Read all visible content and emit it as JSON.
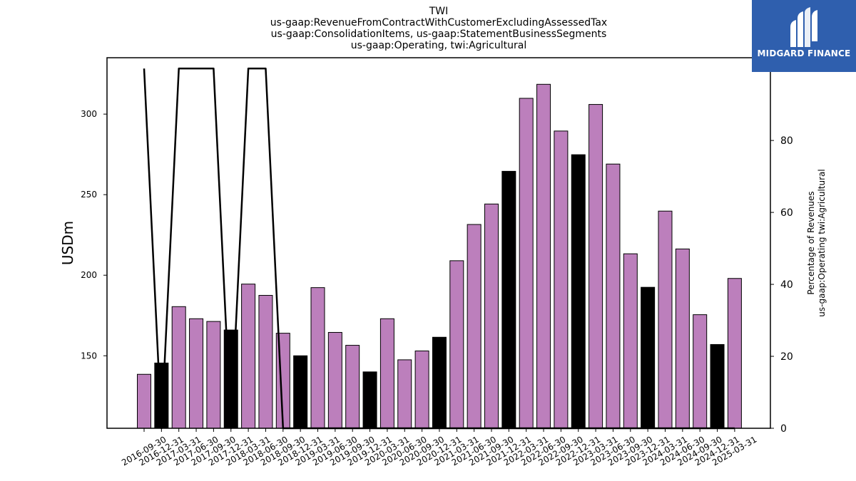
{
  "chart_data": {
    "type": "bar",
    "title_lines": [
      "TWI",
      "us-gaap:RevenueFromContractWithCustomerExcludingAssessedTax",
      "us-gaap:ConsolidationItems, us-gaap:StatementBusinessSegments",
      "us-gaap:Operating, twi:Agricultural"
    ],
    "ylabel": "USDm",
    "y2label_lines": [
      "Percentage of Revenues",
      "us-gaap:Operating twi:Agricultural"
    ],
    "ylim": [
      105,
      335
    ],
    "yticks": [
      150,
      200,
      250,
      300
    ],
    "y2lim": [
      0,
      103
    ],
    "y2ticks": [
      0,
      20,
      40,
      60,
      80,
      100
    ],
    "categories": [
      "2016-09-30",
      "2016-12-31",
      "2017-03-31",
      "2017-06-30",
      "2017-09-30",
      "2017-12-31",
      "2018-03-31",
      "2018-06-30",
      "2018-09-30",
      "2018-12-31",
      "2019-03-31",
      "2019-06-30",
      "2019-09-30",
      "2019-12-31",
      "2020-03-31",
      "2020-06-30",
      "2020-09-30",
      "2020-12-31",
      "2021-03-31",
      "2021-06-30",
      "2021-09-30",
      "2021-12-31",
      "2022-03-31",
      "2022-06-30",
      "2022-09-30",
      "2022-12-31",
      "2023-03-31",
      "2023-06-30",
      "2023-09-30",
      "2023-12-31",
      "2024-03-31",
      "2024-06-30",
      "2024-09-30",
      "2024-12-31",
      "2025-03-31"
    ],
    "series": [
      {
        "type": "bar",
        "values": [
          138.5,
          145.5,
          180.5,
          173,
          171.3,
          166,
          194.5,
          187.5,
          164,
          150,
          192.3,
          164.5,
          156.5,
          140,
          173,
          147.5,
          153,
          161.5,
          209,
          231.5,
          244.2,
          264.5,
          309.8,
          318.5,
          289.5,
          274.8,
          306,
          269,
          213.3,
          192.5,
          239.8,
          216.3,
          175.5,
          157,
          198
        ],
        "colors": [
          "#bc7fbc",
          "#000000",
          "#bc7fbc",
          "#bc7fbc",
          "#bc7fbc",
          "#000000",
          "#bc7fbc",
          "#bc7fbc",
          "#bc7fbc",
          "#000000",
          "#bc7fbc",
          "#bc7fbc",
          "#bc7fbc",
          "#000000",
          "#bc7fbc",
          "#bc7fbc",
          "#bc7fbc",
          "#000000",
          "#bc7fbc",
          "#bc7fbc",
          "#bc7fbc",
          "#000000",
          "#bc7fbc",
          "#bc7fbc",
          "#bc7fbc",
          "#000000",
          "#bc7fbc",
          "#bc7fbc",
          "#bc7fbc",
          "#000000",
          "#bc7fbc",
          "#bc7fbc",
          "#bc7fbc",
          "#000000",
          "#bc7fbc"
        ]
      },
      {
        "type": "line",
        "axis": "right",
        "color": "#000000",
        "values": [
          100,
          0,
          100,
          100,
          100,
          0,
          100,
          100,
          0,
          0,
          0,
          0,
          0,
          0,
          0,
          0,
          0,
          0,
          0,
          0,
          0,
          0,
          0,
          0,
          0,
          0,
          0,
          0,
          0,
          0,
          0,
          0,
          0,
          0,
          0
        ]
      }
    ],
    "grid": false
  },
  "logo": {
    "text": "MIDGARD FINANCE",
    "bg_color": "#2f5fae"
  }
}
